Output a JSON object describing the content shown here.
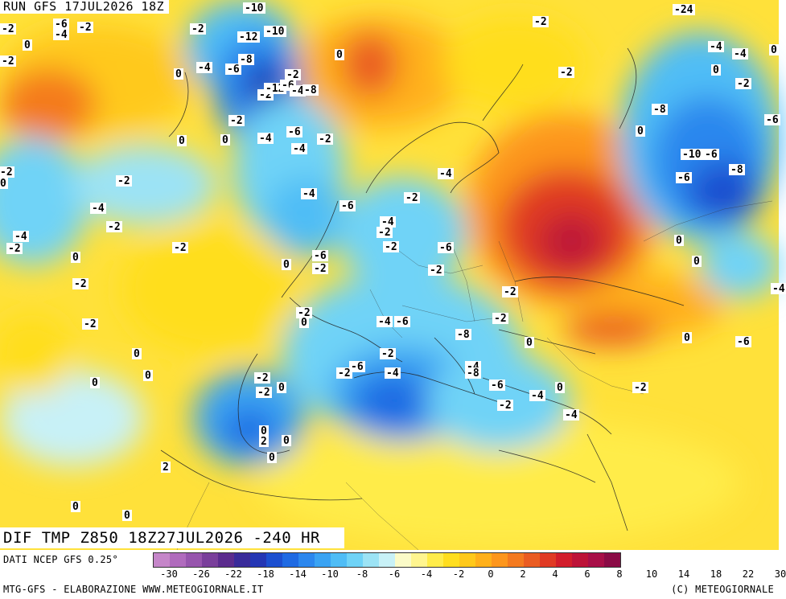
{
  "header": {
    "run": "RUN GFS 17JUL2026 18Z"
  },
  "map_title": "DIF TMP Z850 18Z27JUL2026 -240 HR",
  "footer": {
    "source": "DATI NCEP GFS 0.25°",
    "credit_left": "MTG-GFS - ELABORAZIONE WWW.METEOGIORNALE.IT",
    "credit_right": "(C) METEOGIORNALE"
  },
  "legend": {
    "colors": [
      "#c586c9",
      "#b06bbd",
      "#9755ad",
      "#7a3f9b",
      "#5c2c8e",
      "#3a2b9a",
      "#2436b4",
      "#1c4fd0",
      "#1f6ae3",
      "#2c87ee",
      "#3aa3f3",
      "#4fbdf6",
      "#6fd3f7",
      "#9ce3f5",
      "#c8f1f7",
      "#fbfbc8",
      "#fff58f",
      "#ffec4a",
      "#ffde1f",
      "#ffc91a",
      "#ffb01a",
      "#fd961c",
      "#f47a1f",
      "#ea5c22",
      "#e03a24",
      "#d21d2b",
      "#bd1338",
      "#a80f48",
      "#8a0b46"
    ],
    "tick_labels": [
      "-30",
      "-26",
      "-22",
      "-18",
      "-14",
      "-10",
      "-8",
      "-6",
      "-4",
      "-2",
      "0",
      "2",
      "4",
      "6",
      "8",
      "10",
      "14",
      "18",
      "22",
      "30"
    ]
  },
  "map": {
    "warm_zone_color": "#ffe13a",
    "cool_zone_color": "#5fd0f5",
    "cold_zone_color": "#1f6ae3",
    "hot_zone_color": "#e03a24",
    "contour_labels": [
      "-6",
      "-4",
      "-2",
      "0",
      "-2",
      "-10",
      "-2",
      "-12",
      "-10",
      "-8",
      "-4",
      "-6",
      "-2",
      "0",
      "0",
      "-2",
      "-12",
      "-6",
      "-4",
      "-8",
      "-2",
      "0",
      "0",
      "-4",
      "-6",
      "-4",
      "-2",
      "-2",
      "-2",
      "-24",
      "-8",
      "-10",
      "-6",
      "-6",
      "-8",
      "0",
      "-2",
      "-4",
      "0",
      "-4",
      "0",
      "-2",
      "-6",
      "-2",
      "0",
      "-2",
      "-4",
      "-2",
      "-4",
      "-2",
      "-2",
      "-4",
      "-6",
      "-4",
      "-2",
      "-2",
      "-2",
      "-4",
      "-6",
      "-2",
      "0",
      "-6",
      "-2",
      "0",
      "-2",
      "-2",
      "-2",
      "0",
      "-4",
      "-6",
      "-8",
      "-2",
      "-2",
      "0",
      "-2",
      "-4",
      "-6",
      "-2",
      "-2",
      "-2",
      "0",
      "-4",
      "-8",
      "-6",
      "-4",
      "-2",
      "-4",
      "0",
      "-2",
      "0",
      "-6",
      "-4",
      "0",
      "0",
      "0",
      "0",
      "0",
      "2",
      "0",
      "0",
      "0",
      "2",
      "0",
      "0"
    ]
  }
}
